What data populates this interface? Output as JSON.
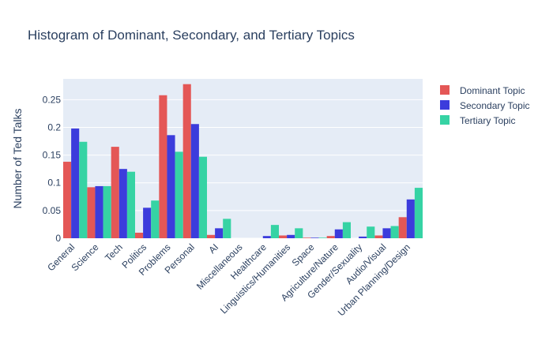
{
  "chart_data": {
    "type": "bar",
    "title": "Histogram of Dominant, Secondary, and Tertiary Topics",
    "xlabel": "",
    "ylabel": "Number of Ted Talks",
    "ylim": [
      0,
      0.2875
    ],
    "yticks": [
      0,
      0.05,
      0.1,
      0.15,
      0.2,
      0.25
    ],
    "ytick_labels": [
      "0",
      "0.05",
      "0.1",
      "0.15",
      "0.2",
      "0.25"
    ],
    "grid": true,
    "legend_position": "top-right",
    "categories": [
      "General",
      "Science",
      "Tech",
      "Politics",
      "Problems",
      "Personal",
      "AI",
      "Miscellaneous",
      "Healthcare",
      "Linguistics/Humanities",
      "Space",
      "Agriculture/Nature",
      "Gender/Sexuality",
      "Audio/Visual",
      "Urban Planning/Design"
    ],
    "series": [
      {
        "name": "Dominant Topic",
        "color": "#e45756",
        "values": [
          0.138,
          0.092,
          0.165,
          0.01,
          0.258,
          0.278,
          0.006,
          0.0,
          0.0,
          0.005,
          0.001,
          0.004,
          0.0,
          0.005,
          0.038
        ]
      },
      {
        "name": "Secondary Topic",
        "color": "#3c3cdc",
        "values": [
          0.198,
          0.094,
          0.125,
          0.055,
          0.186,
          0.206,
          0.018,
          0.0,
          0.004,
          0.006,
          0.001,
          0.016,
          0.003,
          0.018,
          0.07
        ]
      },
      {
        "name": "Tertiary Topic",
        "color": "#36d3a4",
        "values": [
          0.174,
          0.094,
          0.12,
          0.068,
          0.156,
          0.147,
          0.035,
          0.0,
          0.024,
          0.018,
          0.001,
          0.029,
          0.021,
          0.022,
          0.091
        ]
      }
    ]
  }
}
